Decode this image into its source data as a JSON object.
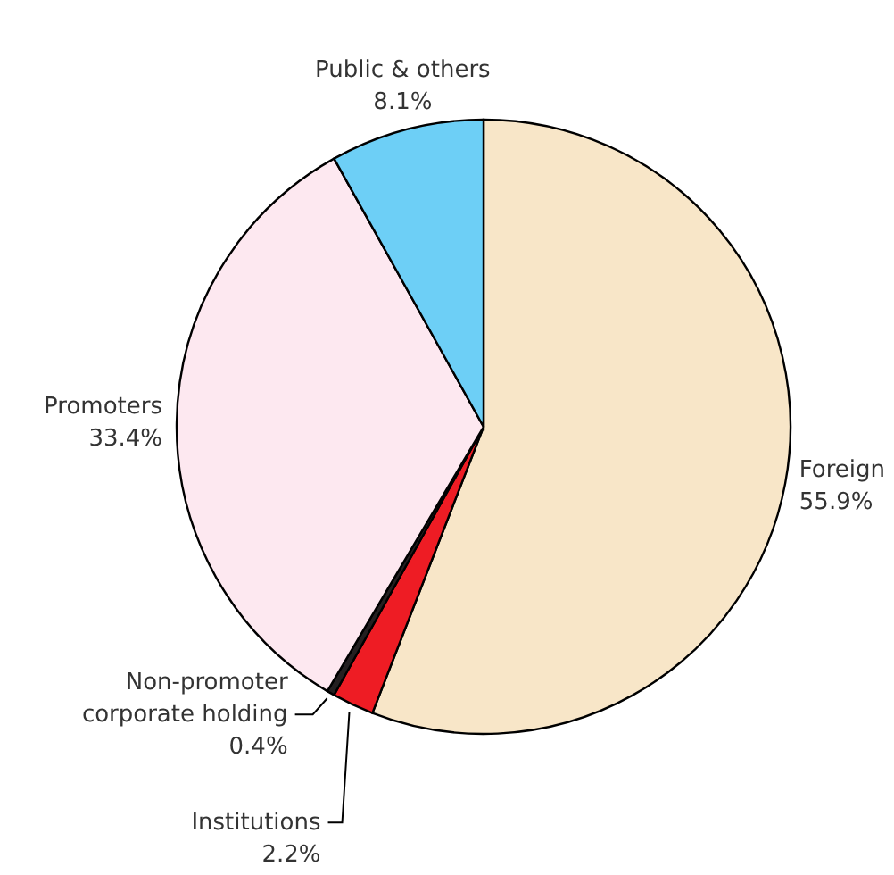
{
  "chart_data": {
    "type": "pie",
    "categories": [
      "Foreign",
      "Institutions",
      "Non-promoter corporate holding",
      "Promoters",
      "Public & others"
    ],
    "values": [
      55.9,
      2.2,
      0.4,
      33.4,
      8.1
    ],
    "value_labels": [
      "55.9%",
      "2.2%",
      "0.4%",
      "33.4%",
      "8.1%"
    ],
    "colors": [
      "#f8e6c8",
      "#ee1c24",
      "#231f20",
      "#fde8f0",
      "#6dcff6"
    ],
    "legend": false
  }
}
